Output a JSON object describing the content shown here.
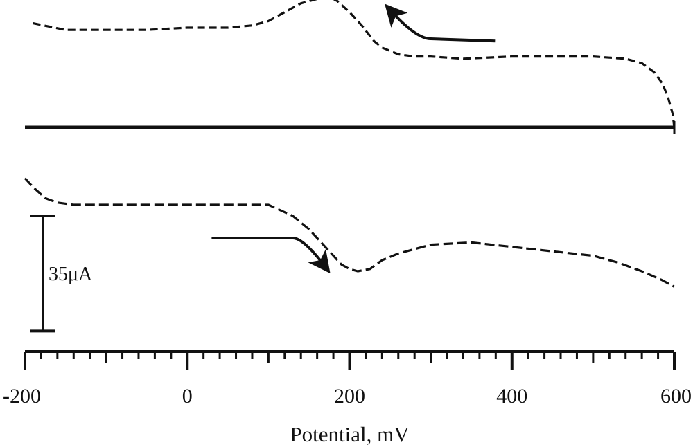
{
  "chart_data": {
    "type": "line",
    "title": "",
    "xlabel": "Potential, mV",
    "ylabel": "",
    "xlim": [
      -200,
      600
    ],
    "ylim": [
      -110,
      95
    ],
    "x_ticks_major": [
      -200,
      0,
      200,
      400,
      600
    ],
    "x_tick_labels": [
      "-200",
      "0",
      "200",
      "400",
      "600"
    ],
    "x_minor_step": 20,
    "grid": false,
    "legend": "none",
    "zero_line": true,
    "scale_bar": {
      "label": "35μA",
      "value_uA": 35,
      "from": -40,
      "to": -92
    },
    "series": [
      {
        "role": "oxidation (upper branch, swept right to left)",
        "dash": "dashed",
        "x": [
          -190,
          -150,
          -100,
          -50,
          0,
          50,
          80,
          100,
          120,
          140,
          160,
          175,
          185,
          200,
          215,
          230,
          240,
          260,
          280,
          300,
          340,
          400,
          450,
          500,
          540,
          560,
          575,
          585,
          592,
          598,
          600
        ],
        "y": [
          47,
          44,
          44,
          44,
          45,
          45,
          46,
          48,
          52,
          56,
          58,
          59,
          57,
          52,
          46,
          39,
          36,
          33,
          32,
          32,
          31,
          32,
          32,
          32,
          31,
          29,
          25,
          20,
          14,
          6,
          0
        ]
      },
      {
        "role": "reduction (lower branch, swept left to right)",
        "dash": "dashed",
        "x": [
          -200,
          -190,
          -175,
          -160,
          -140,
          -100,
          -50,
          0,
          50,
          80,
          100,
          130,
          150,
          165,
          180,
          190,
          200,
          210,
          225,
          240,
          260,
          300,
          350,
          400,
          450,
          500,
          530,
          560,
          585,
          600
        ],
        "y": [
          -23,
          -27,
          -32,
          -34,
          -35,
          -35,
          -35,
          -35,
          -35,
          -35,
          -35,
          -40,
          -46,
          -52,
          -58,
          -62,
          -64,
          -65,
          -64,
          -60,
          -57,
          -53,
          -52,
          -54,
          -56,
          -58,
          -61,
          -65,
          -69,
          -72
        ]
      }
    ],
    "annotations": [
      {
        "kind": "arrow",
        "meaning": "sweep direction toward negative potential",
        "from": [
          380,
          39
        ],
        "via": [
          300,
          40
        ],
        "to": [
          250,
          53
        ]
      },
      {
        "kind": "arrow",
        "meaning": "sweep direction toward positive potential",
        "from": [
          30,
          -50
        ],
        "via": [
          130,
          -50
        ],
        "to": [
          170,
          -63
        ]
      }
    ]
  }
}
